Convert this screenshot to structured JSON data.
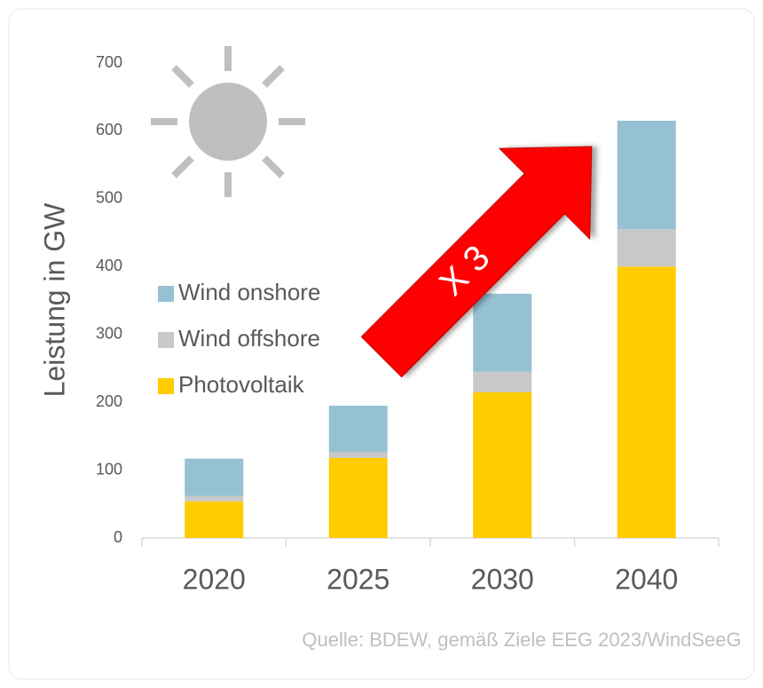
{
  "chart_data": {
    "type": "stacked_bar",
    "ylabel": "Leistung in GW",
    "categories": [
      "2020",
      "2025",
      "2030",
      "2040"
    ],
    "series": [
      {
        "name": "Photovoltaik",
        "color": "#ffcc00",
        "values": [
          54,
          118,
          215,
          400
        ]
      },
      {
        "name": "Wind offshore",
        "color": "#c8c8c8",
        "values": [
          8,
          9,
          30,
          55
        ]
      },
      {
        "name": "Wind onshore",
        "color": "#96c1d2",
        "values": [
          55,
          68,
          115,
          160
        ]
      }
    ],
    "ylim": [
      0,
      700
    ],
    "yticks": [
      0,
      100,
      200,
      300,
      400,
      500,
      600,
      700
    ],
    "annotation": "X 3",
    "source": "Quelle: BDEW, gemäß Ziele EEG 2023/WindSeeG"
  }
}
